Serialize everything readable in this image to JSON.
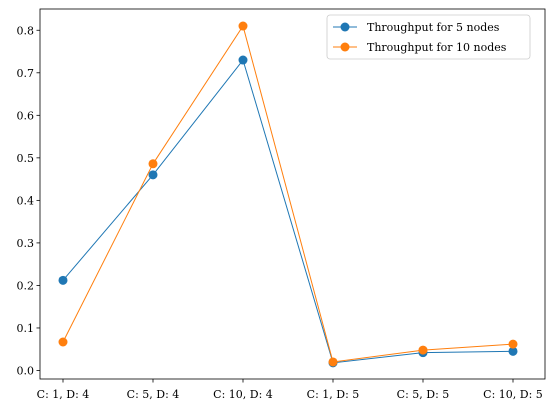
{
  "chart_data": {
    "type": "line",
    "title": "",
    "xlabel": "",
    "ylabel": "",
    "categories": [
      "C: 1, D: 4",
      "C: 5, D: 4",
      "C: 10, D: 4",
      "C: 1, D: 5",
      "C: 5, D: 5",
      "C: 10, D: 5"
    ],
    "series": [
      {
        "name": "Throughput for 5 nodes",
        "color": "#1f77b4",
        "values": [
          0.212,
          0.46,
          0.73,
          0.018,
          0.042,
          0.045
        ]
      },
      {
        "name": "Throughput for 10 nodes",
        "color": "#ff7f0e",
        "values": [
          0.067,
          0.486,
          0.81,
          0.02,
          0.048,
          0.062
        ]
      }
    ],
    "ylim": [
      -0.02,
      0.85
    ],
    "yticks": [
      0.0,
      0.1,
      0.2,
      0.3,
      0.4,
      0.5,
      0.6,
      0.7,
      0.8
    ],
    "ytick_labels": [
      "0.0",
      "0.1",
      "0.2",
      "0.3",
      "0.4",
      "0.5",
      "0.6",
      "0.7",
      "0.8"
    ],
    "grid": false,
    "legend_position": "top-right"
  }
}
